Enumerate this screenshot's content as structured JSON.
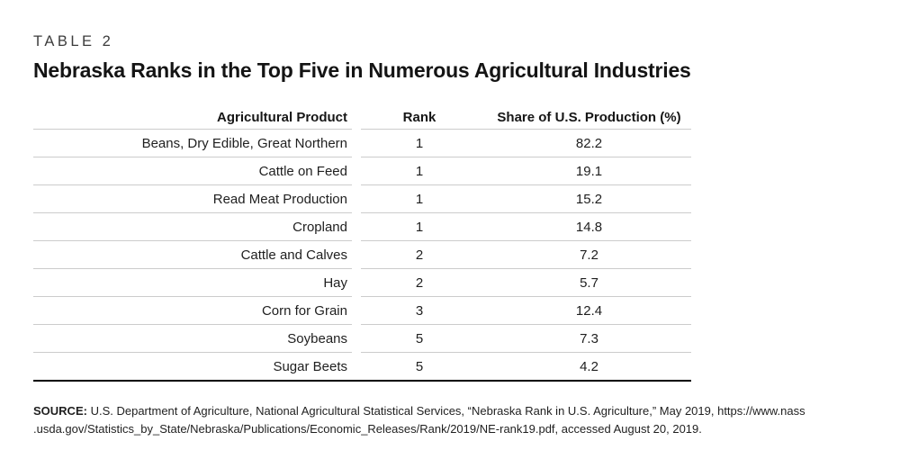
{
  "page": {
    "kicker": "TABLE 2",
    "title": "Nebraska Ranks in the Top Five in Numerous Agricultural Industries"
  },
  "table": {
    "columns": {
      "product": "Agricultural Product",
      "rank": "Rank",
      "share": "Share of U.S. Production (%)"
    },
    "rows": [
      {
        "product": "Beans, Dry Edible, Great Northern",
        "rank": "1",
        "share": "82.2"
      },
      {
        "product": "Cattle on Feed",
        "rank": "1",
        "share": "19.1"
      },
      {
        "product": "Read Meat Production",
        "rank": "1",
        "share": "15.2"
      },
      {
        "product": "Cropland",
        "rank": "1",
        "share": "14.8"
      },
      {
        "product": "Cattle and Calves",
        "rank": "2",
        "share": "7.2"
      },
      {
        "product": "Hay",
        "rank": "2",
        "share": "5.7"
      },
      {
        "product": "Corn for Grain",
        "rank": "3",
        "share": "12.4"
      },
      {
        "product": "Soybeans",
        "rank": "5",
        "share": "7.3"
      },
      {
        "product": "Sugar Beets",
        "rank": "5",
        "share": "4.2"
      }
    ]
  },
  "source": {
    "label": "SOURCE:",
    "lines": [
      "U.S. Department of Agriculture, National Agricultural Statistical Services, “Nebraska Rank in U.S. Agriculture,” May 2019, https://www.nass",
      ".usda.gov/Statistics_by_State/Nebraska/Publications/Economic_Releases/Rank/2019/NE-rank19.pdf, accessed August 20, 2019."
    ]
  },
  "colors": {
    "text": "#1c1c1c",
    "rule_light": "#cccccc",
    "rule_heavy": "#000000"
  }
}
